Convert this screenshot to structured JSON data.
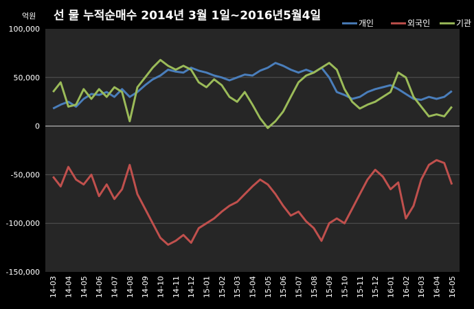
{
  "chart_data": {
    "type": "line",
    "title": "선 물 누적순매수 2014년 3월 1일~2016년5월4일",
    "unit_label": "억원",
    "ylim": [
      -150000,
      100000
    ],
    "y_ticks": [
      100000,
      50000,
      0,
      -50000,
      -100000,
      -150000
    ],
    "y_tick_labels": [
      "100,000",
      "50,000",
      "0",
      "-50,000",
      "-100,000",
      "-150,000"
    ],
    "x_tick_labels": [
      "14-03",
      "14-04",
      "14-05",
      "14-06",
      "14-07",
      "14-08",
      "14-09",
      "14-10",
      "14-11",
      "14-12",
      "15-01",
      "15-02",
      "15-03",
      "15-04",
      "15-05",
      "15-06",
      "15-07",
      "15-08",
      "15-09",
      "15-10",
      "15-11",
      "15-12",
      "16-01",
      "16-02",
      "16-03",
      "16-04",
      "16-05"
    ],
    "grid": true,
    "legend_position": "top-right",
    "background": "#000000",
    "series": [
      {
        "name": "개인",
        "color": "#4A7EBB",
        "values": [
          [
            0,
            18000
          ],
          [
            0.5,
            22000
          ],
          [
            1,
            25000
          ],
          [
            1.5,
            20000
          ],
          [
            2,
            28000
          ],
          [
            2.5,
            33000
          ],
          [
            3,
            32000
          ],
          [
            3.5,
            35000
          ],
          [
            4,
            30000
          ],
          [
            4.5,
            38000
          ],
          [
            5,
            30000
          ],
          [
            5.5,
            35000
          ],
          [
            6,
            42000
          ],
          [
            6.5,
            48000
          ],
          [
            7,
            52000
          ],
          [
            7.5,
            58000
          ],
          [
            8,
            56000
          ],
          [
            8.5,
            55000
          ],
          [
            9,
            60000
          ],
          [
            9.5,
            57000
          ],
          [
            10,
            55000
          ],
          [
            10.5,
            52000
          ],
          [
            11,
            50000
          ],
          [
            11.5,
            47000
          ],
          [
            12,
            50000
          ],
          [
            12.5,
            53000
          ],
          [
            13,
            52000
          ],
          [
            13.5,
            57000
          ],
          [
            14,
            60000
          ],
          [
            14.5,
            65000
          ],
          [
            15,
            62000
          ],
          [
            15.5,
            58000
          ],
          [
            16,
            55000
          ],
          [
            16.5,
            58000
          ],
          [
            17,
            55000
          ],
          [
            17.5,
            60000
          ],
          [
            18,
            50000
          ],
          [
            18.5,
            35000
          ],
          [
            19,
            32000
          ],
          [
            19.5,
            28000
          ],
          [
            20,
            30000
          ],
          [
            20.5,
            35000
          ],
          [
            21,
            38000
          ],
          [
            21.5,
            40000
          ],
          [
            22,
            42000
          ],
          [
            22.5,
            38000
          ],
          [
            23,
            33000
          ],
          [
            23.5,
            28000
          ],
          [
            24,
            27000
          ],
          [
            24.5,
            30000
          ],
          [
            25,
            28000
          ],
          [
            25.5,
            30000
          ],
          [
            26,
            36000
          ]
        ]
      },
      {
        "name": "외국인",
        "color": "#C0504D",
        "values": [
          [
            0,
            -52000
          ],
          [
            0.5,
            -62000
          ],
          [
            1,
            -42000
          ],
          [
            1.5,
            -55000
          ],
          [
            2,
            -60000
          ],
          [
            2.5,
            -50000
          ],
          [
            3,
            -72000
          ],
          [
            3.5,
            -60000
          ],
          [
            4,
            -75000
          ],
          [
            4.5,
            -65000
          ],
          [
            5,
            -40000
          ],
          [
            5.5,
            -70000
          ],
          [
            6,
            -85000
          ],
          [
            6.5,
            -100000
          ],
          [
            7,
            -115000
          ],
          [
            7.5,
            -122000
          ],
          [
            8,
            -118000
          ],
          [
            8.5,
            -112000
          ],
          [
            9,
            -120000
          ],
          [
            9.5,
            -105000
          ],
          [
            10,
            -100000
          ],
          [
            10.5,
            -95000
          ],
          [
            11,
            -88000
          ],
          [
            11.5,
            -82000
          ],
          [
            12,
            -78000
          ],
          [
            12.5,
            -70000
          ],
          [
            13,
            -62000
          ],
          [
            13.5,
            -55000
          ],
          [
            14,
            -60000
          ],
          [
            14.5,
            -70000
          ],
          [
            15,
            -82000
          ],
          [
            15.5,
            -92000
          ],
          [
            16,
            -88000
          ],
          [
            16.5,
            -98000
          ],
          [
            17,
            -105000
          ],
          [
            17.5,
            -118000
          ],
          [
            18,
            -100000
          ],
          [
            18.5,
            -95000
          ],
          [
            19,
            -100000
          ],
          [
            19.5,
            -85000
          ],
          [
            20,
            -70000
          ],
          [
            20.5,
            -55000
          ],
          [
            21,
            -45000
          ],
          [
            21.5,
            -52000
          ],
          [
            22,
            -65000
          ],
          [
            22.5,
            -58000
          ],
          [
            23,
            -95000
          ],
          [
            23.5,
            -82000
          ],
          [
            24,
            -55000
          ],
          [
            24.5,
            -40000
          ],
          [
            25,
            -35000
          ],
          [
            25.5,
            -38000
          ],
          [
            26,
            -60000
          ]
        ]
      },
      {
        "name": "기관",
        "color": "#9BBB59",
        "values": [
          [
            0,
            35000
          ],
          [
            0.5,
            45000
          ],
          [
            1,
            20000
          ],
          [
            1.5,
            22000
          ],
          [
            2,
            38000
          ],
          [
            2.5,
            28000
          ],
          [
            3,
            38000
          ],
          [
            3.5,
            30000
          ],
          [
            4,
            40000
          ],
          [
            4.5,
            35000
          ],
          [
            5,
            5000
          ],
          [
            5.5,
            40000
          ],
          [
            6,
            50000
          ],
          [
            6.5,
            60000
          ],
          [
            7,
            68000
          ],
          [
            7.5,
            62000
          ],
          [
            8,
            58000
          ],
          [
            8.5,
            62000
          ],
          [
            9,
            58000
          ],
          [
            9.5,
            45000
          ],
          [
            10,
            40000
          ],
          [
            10.5,
            48000
          ],
          [
            11,
            42000
          ],
          [
            11.5,
            30000
          ],
          [
            12,
            25000
          ],
          [
            12.5,
            35000
          ],
          [
            13,
            22000
          ],
          [
            13.5,
            8000
          ],
          [
            14,
            -2000
          ],
          [
            14.5,
            5000
          ],
          [
            15,
            15000
          ],
          [
            15.5,
            30000
          ],
          [
            16,
            45000
          ],
          [
            16.5,
            52000
          ],
          [
            17,
            55000
          ],
          [
            17.5,
            60000
          ],
          [
            18,
            65000
          ],
          [
            18.5,
            58000
          ],
          [
            19,
            38000
          ],
          [
            19.5,
            25000
          ],
          [
            20,
            18000
          ],
          [
            20.5,
            22000
          ],
          [
            21,
            25000
          ],
          [
            21.5,
            30000
          ],
          [
            22,
            35000
          ],
          [
            22.5,
            55000
          ],
          [
            23,
            50000
          ],
          [
            23.5,
            30000
          ],
          [
            24,
            20000
          ],
          [
            24.5,
            10000
          ],
          [
            25,
            12000
          ],
          [
            25.5,
            10000
          ],
          [
            26,
            20000
          ]
        ]
      }
    ]
  }
}
